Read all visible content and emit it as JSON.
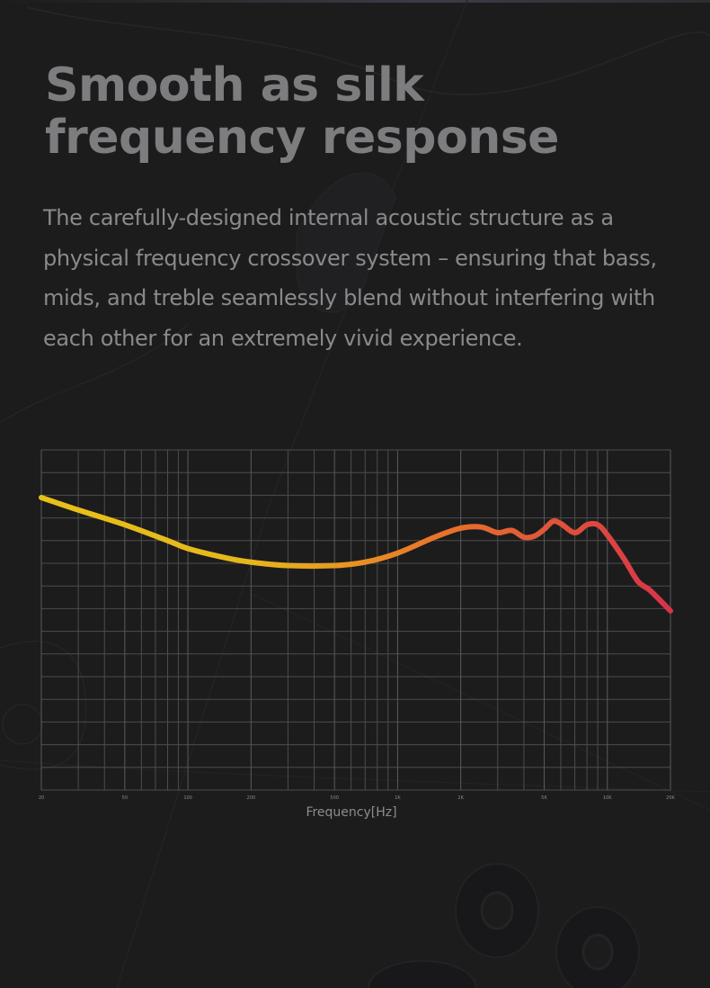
{
  "header": {
    "title_line1": "Smooth as silk",
    "title_line2": "frequency response"
  },
  "description": "The carefully-designed internal acoustic structure as a physical frequency crossover system – ensuring that bass, mids, and treble seamlessly blend without interfering with each other for an extremely vivid experience.",
  "chart_data": {
    "type": "line",
    "title": "",
    "xlabel": "Frequency[Hz]",
    "ylabel": "",
    "x_scale": "log",
    "xlim": [
      20,
      20000
    ],
    "ylim": [
      0,
      15
    ],
    "grid": true,
    "y_gridline_count": 15,
    "x_ticks": [
      {
        "value": 20,
        "label": "20"
      },
      {
        "value": 50,
        "label": "50"
      },
      {
        "value": 100,
        "label": "100"
      },
      {
        "value": 200,
        "label": "200"
      },
      {
        "value": 500,
        "label": "500"
      },
      {
        "value": 1000,
        "label": "1K"
      },
      {
        "value": 2000,
        "label": "2K"
      },
      {
        "value": 5000,
        "label": "5K"
      },
      {
        "value": 10000,
        "label": "10K"
      },
      {
        "value": 20000,
        "label": "20K"
      }
    ],
    "colors": {
      "low": "#e8c018",
      "mid": "#e87628",
      "high": "#d8334a",
      "grid": "#4d4d4f",
      "background": "#1c1c1d"
    },
    "series": [
      {
        "x": [
          20,
          30,
          50,
          80,
          100,
          150,
          200,
          300,
          500,
          700,
          1000,
          1500,
          2000,
          2500,
          3000,
          3500,
          4000,
          4500,
          5000,
          5500,
          6000,
          7000,
          8000,
          9000,
          10000,
          12000,
          14000,
          16000,
          20000
        ],
        "y": [
          12.9,
          12.35,
          11.7,
          11.0,
          10.65,
          10.25,
          10.05,
          9.9,
          9.9,
          10.05,
          10.45,
          11.15,
          11.55,
          11.6,
          11.35,
          11.45,
          11.15,
          11.2,
          11.5,
          11.85,
          11.75,
          11.35,
          11.7,
          11.7,
          11.25,
          10.2,
          9.2,
          8.8,
          7.9
        ]
      }
    ]
  }
}
